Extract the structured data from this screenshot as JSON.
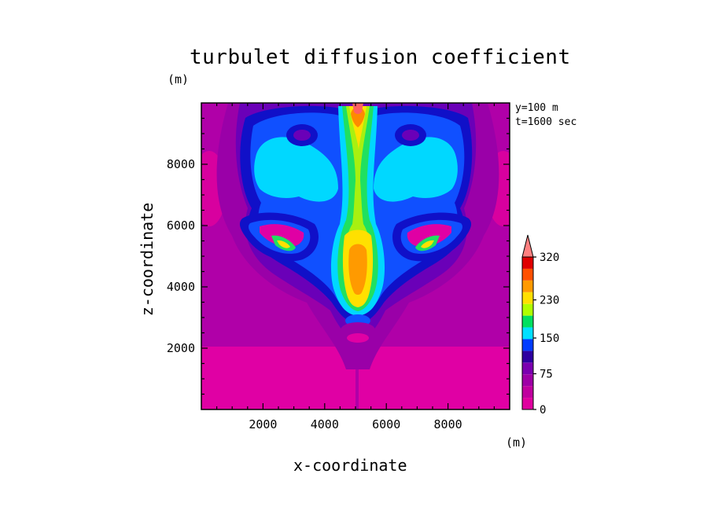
{
  "chart_data": {
    "type": "contour",
    "title": "turbulet diffusion coefficient",
    "xlabel": "x-coordinate",
    "ylabel": "z-coordinate",
    "x_unit": "(m)",
    "y_unit": "(m)",
    "xlim": [
      0,
      10000
    ],
    "ylim": [
      0,
      10000
    ],
    "xticks": [
      2000,
      4000,
      6000,
      8000
    ],
    "yticks": [
      2000,
      4000,
      6000,
      8000
    ],
    "annotations": [
      "y=100 m",
      "t=1600 sec"
    ],
    "colorbar": {
      "tick_labels": [
        "0",
        "75",
        "150",
        "230",
        "320"
      ],
      "tick_values": [
        0,
        75,
        150,
        230,
        320
      ],
      "levels": [
        0,
        25,
        50,
        75,
        100,
        125,
        150,
        175,
        200,
        230,
        260,
        290,
        320
      ],
      "colors": [
        "#e0009f",
        "#c0009f",
        "#9e00a6",
        "#7b00b0",
        "#2e00a0",
        "#003cff",
        "#00e0ff",
        "#00e060",
        "#b0ff00",
        "#ffe000",
        "#ff9a00",
        "#ff5000",
        "#e00000"
      ],
      "extend_max_color": "#ff8080"
    },
    "regions": [
      {
        "name": "plume core",
        "center": [
          5000,
          5000
        ],
        "level": "150-320"
      },
      {
        "name": "upper cap",
        "center": [
          5000,
          9700
        ],
        "level": "230-320"
      },
      {
        "name": "left eddy",
        "center": [
          3000,
          5200
        ],
        "level": "150-230"
      },
      {
        "name": "right eddy",
        "center": [
          7000,
          5200
        ],
        "level": "150-230"
      },
      {
        "name": "background",
        "level": "0-50"
      }
    ]
  }
}
